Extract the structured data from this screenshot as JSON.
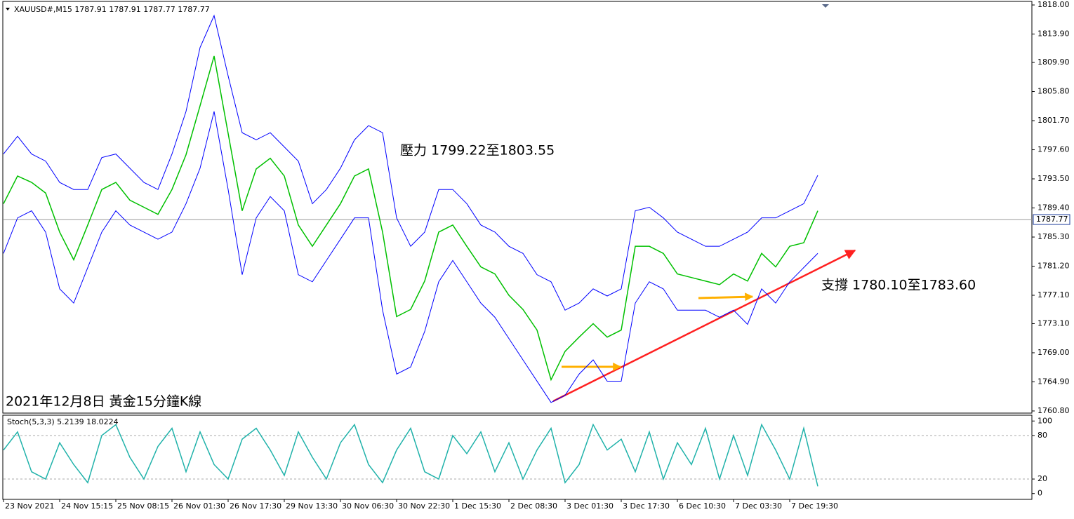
{
  "chart_data": [
    {
      "type": "line",
      "header": "XAUUSD#,M15 1787.91 1787.91 1787.77 1787.77",
      "title": "2021年12月8日 黃金15分鐘K線",
      "annotations": [
        "壓力 1799.22至1803.55",
        "支撐 1780.10至1783.60"
      ],
      "x": [
        0,
        4,
        8,
        12,
        16,
        20,
        24,
        28,
        32,
        36,
        40,
        44,
        48,
        52,
        56,
        60,
        64,
        68,
        72,
        76,
        80,
        84,
        88,
        92,
        96,
        100,
        104,
        108,
        112,
        116,
        120,
        124,
        128,
        132,
        136,
        140,
        144,
        148,
        152,
        156,
        160,
        164,
        168,
        172,
        176,
        180,
        184,
        188,
        192,
        196,
        200,
        204,
        208,
        212,
        216,
        220,
        224,
        228,
        232
      ],
      "series": [
        {
          "color": "#0000ff",
          "values": [
            1797.0,
            1799.5,
            1797.0,
            1796.0,
            1793.0,
            1792.0,
            1792.0,
            1796.5,
            1797.0,
            1795.0,
            1793.0,
            1792.0,
            1797.0,
            1803.0,
            1812.0,
            1816.5,
            1808.0,
            1800.0,
            1799.0,
            1800.0,
            1798.0,
            1796.0,
            1790.0,
            1792.0,
            1795.0,
            1799.0,
            1801.0,
            1800.0,
            1788.0,
            1784.0,
            1786.0,
            1792.0,
            1792.0,
            1790.0,
            1787.0,
            1786.0,
            1784.0,
            1783.0,
            1780.0,
            1779.0,
            1775.0,
            1776.0,
            1778.0,
            1777.0,
            1778.0,
            1789.0,
            1789.5,
            1788.0,
            1786.0,
            1785.0,
            1784.0,
            1784.0,
            1785.0,
            1786.0,
            1788.0,
            1788.0,
            1789.0,
            1790.0,
            1794.0
          ]
        },
        {
          "color": "#00c000",
          "values": [
            1790.0,
            1793.9,
            1793.0,
            1791.5,
            1786.0,
            1782.1,
            1787.0,
            1792.0,
            1793.0,
            1790.5,
            1789.5,
            1788.5,
            1792.0,
            1796.9,
            1803.8,
            1810.8,
            1799.9,
            1789.0,
            1794.9,
            1796.4,
            1793.9,
            1787.0,
            1784.0,
            1787.0,
            1790.0,
            1793.9,
            1794.9,
            1786.0,
            1774.1,
            1775.1,
            1779.1,
            1786.0,
            1787.0,
            1784.0,
            1781.1,
            1780.1,
            1777.1,
            1775.1,
            1772.2,
            1765.2,
            1769.2,
            1771.2,
            1773.1,
            1771.2,
            1772.2,
            1784.0,
            1784.0,
            1783.0,
            1780.1,
            1779.6,
            1779.1,
            1778.6,
            1780.1,
            1779.1,
            1783.0,
            1781.1,
            1784.0,
            1784.5,
            1789.0
          ]
        },
        {
          "color": "#0000ff",
          "values": [
            1783.0,
            1788.0,
            1789.0,
            1786.0,
            1778.0,
            1776.0,
            1781.0,
            1786.0,
            1789.0,
            1787.0,
            1786.0,
            1785.0,
            1786.0,
            1790.0,
            1795.0,
            1803.0,
            1792.0,
            1780.0,
            1788.0,
            1791.0,
            1789.0,
            1780.0,
            1779.0,
            1782.0,
            1785.0,
            1788.0,
            1788.0,
            1775.0,
            1766.0,
            1767.0,
            1772.0,
            1779.0,
            1782.0,
            1779.0,
            1776.0,
            1774.0,
            1771.0,
            1768.0,
            1765.0,
            1762.0,
            1763.0,
            1766.0,
            1768.0,
            1765.0,
            1765.0,
            1776.0,
            1779.0,
            1778.0,
            1775.0,
            1775.0,
            1775.0,
            1774.0,
            1775.0,
            1773.0,
            1778.0,
            1776.0,
            1779.0,
            1781.0,
            1783.0
          ]
        }
      ],
      "current_price": 1787.77,
      "xlim": [
        0,
        293
      ],
      "xticks": [
        {
          "value": 0,
          "label": "23 Nov 2021"
        },
        {
          "value": 16,
          "label": "24 Nov 15:15"
        },
        {
          "value": 32,
          "label": "25 Nov 08:15"
        },
        {
          "value": 48,
          "label": "26 Nov 01:30"
        },
        {
          "value": 64,
          "label": "26 Nov 17:30"
        },
        {
          "value": 80,
          "label": "29 Nov 13:30"
        },
        {
          "value": 96,
          "label": "30 Nov 06:30"
        },
        {
          "value": 112,
          "label": "30 Nov 22:30"
        },
        {
          "value": 128,
          "label": "1 Dec 15:30"
        },
        {
          "value": 144,
          "label": "2 Dec 08:30"
        },
        {
          "value": 160,
          "label": "3 Dec 01:30"
        },
        {
          "value": 176,
          "label": "3 Dec 17:30"
        },
        {
          "value": 192,
          "label": "6 Dec 10:30"
        },
        {
          "value": 208,
          "label": "7 Dec 03:30"
        },
        {
          "value": 224,
          "label": "7 Dec 19:30"
        }
      ],
      "ylim": [
        1760.5,
        1818.5
      ],
      "yticks": [
        {
          "value": 1818,
          "label": "1818.00"
        },
        {
          "value": 1813.9,
          "label": "1813.90"
        },
        {
          "value": 1809.9,
          "label": "1809.90"
        },
        {
          "value": 1805.8,
          "label": "1805.80"
        },
        {
          "value": 1801.7,
          "label": "1801.70"
        },
        {
          "value": 1797.6,
          "label": "1797.60"
        },
        {
          "value": 1793.5,
          "label": "1793.50"
        },
        {
          "value": 1789.4,
          "label": "1789.40"
        },
        {
          "value": 1785.3,
          "label": "1785.30"
        },
        {
          "value": 1781.2,
          "label": "1781.20"
        },
        {
          "value": 1777.1,
          "label": "1777.10"
        },
        {
          "value": 1773.1,
          "label": "1773.10"
        },
        {
          "value": 1769,
          "label": "1769.00"
        },
        {
          "value": 1764.9,
          "label": "1764.90"
        },
        {
          "value": 1760.8,
          "label": "1760.80"
        }
      ]
    },
    {
      "type": "line",
      "title": "Stoch(5,3,3) 5.2139 18.0224",
      "x": [
        0,
        4,
        8,
        12,
        16,
        20,
        24,
        28,
        32,
        36,
        40,
        44,
        48,
        52,
        56,
        60,
        64,
        68,
        72,
        76,
        80,
        84,
        88,
        92,
        96,
        100,
        104,
        108,
        112,
        116,
        120,
        124,
        128,
        132,
        136,
        140,
        144,
        148,
        152,
        156,
        160,
        164,
        168,
        172,
        176,
        180,
        184,
        188,
        192,
        196,
        200,
        204,
        208,
        212,
        216,
        220,
        224,
        228,
        232
      ],
      "series": [
        {
          "color": "#20b2aa",
          "values": [
            60,
            85,
            30,
            20,
            70,
            40,
            15,
            80,
            95,
            50,
            20,
            65,
            90,
            30,
            85,
            40,
            20,
            75,
            90,
            60,
            25,
            85,
            50,
            20,
            70,
            95,
            40,
            15,
            60,
            90,
            30,
            20,
            80,
            55,
            85,
            30,
            70,
            20,
            60,
            90,
            15,
            40,
            95,
            60,
            75,
            30,
            85,
            20,
            70,
            40,
            90,
            20,
            80,
            25,
            95,
            60,
            20,
            90,
            10
          ]
        }
      ],
      "levels": [
        80,
        20
      ],
      "xlim": [
        0,
        293
      ],
      "ylim": [
        -8,
        108
      ],
      "yticks": [
        100,
        80,
        20,
        0
      ]
    }
  ]
}
